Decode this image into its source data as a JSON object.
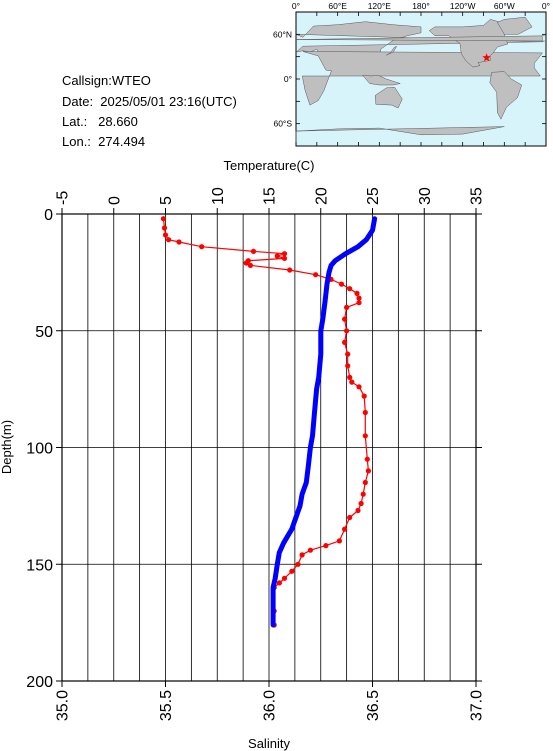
{
  "info": {
    "callsign": "Callsign:WTEO",
    "date": "Date:  2025/05/01 23:16(UTC)",
    "lat": "Lat.:   28.660",
    "lon": "Lon.:  274.494"
  },
  "map": {
    "top_labels": [
      "0°",
      "60°E",
      "120°E",
      "180°",
      "120°W",
      "60°W",
      "0°"
    ],
    "left_labels": [
      "60°N",
      "0°",
      "60°S"
    ],
    "ocean_color": "#d8f4fb",
    "land_color": "#bfbfbf",
    "marker_color": "#ff0000",
    "marker": {
      "lat": 28.66,
      "lon": 274.494
    }
  },
  "chart_data": {
    "type": "line",
    "ylabel": "Depth(m)",
    "ylim": [
      0,
      200
    ],
    "yticks": [
      0,
      50,
      100,
      150,
      200
    ],
    "top_axis": {
      "label": "Temperature(C)",
      "lim": [
        -5,
        35
      ],
      "ticks": [
        -5,
        0,
        5,
        10,
        15,
        20,
        25,
        30,
        35
      ]
    },
    "bottom_axis": {
      "label": "Salinity",
      "lim": [
        35.0,
        37.0
      ],
      "ticks": [
        "35.0",
        "35.5",
        "36.0",
        "36.5",
        "37.0"
      ]
    },
    "grid": true,
    "series": [
      {
        "axis": "temperature",
        "color": "#ff0000",
        "markers": true,
        "points": [
          [
            4.8,
            2
          ],
          [
            4.9,
            6
          ],
          [
            5.0,
            9
          ],
          [
            5.3,
            11
          ],
          [
            6.3,
            12
          ],
          [
            8.5,
            14
          ],
          [
            13.5,
            16
          ],
          [
            16.5,
            17
          ],
          [
            15.8,
            18
          ],
          [
            16.5,
            19
          ],
          [
            13.0,
            20
          ],
          [
            12.8,
            21
          ],
          [
            13.2,
            22
          ],
          [
            17.0,
            24
          ],
          [
            19.5,
            26
          ],
          [
            21.0,
            28
          ],
          [
            22.0,
            30
          ],
          [
            22.8,
            32
          ],
          [
            23.5,
            34
          ],
          [
            23.7,
            36
          ],
          [
            23.7,
            38
          ],
          [
            22.5,
            40
          ],
          [
            22.3,
            45
          ],
          [
            22.5,
            50
          ],
          [
            22.3,
            55
          ],
          [
            22.6,
            60
          ],
          [
            22.6,
            65
          ],
          [
            22.8,
            70
          ],
          [
            23.0,
            72
          ],
          [
            23.7,
            74
          ],
          [
            24.2,
            78
          ],
          [
            24.3,
            85
          ],
          [
            24.3,
            95
          ],
          [
            24.5,
            105
          ],
          [
            24.6,
            110
          ],
          [
            24.3,
            115
          ],
          [
            24.1,
            120
          ],
          [
            23.9,
            124
          ],
          [
            23.6,
            127
          ],
          [
            22.8,
            130
          ],
          [
            22.3,
            135
          ],
          [
            21.8,
            140
          ],
          [
            20.5,
            142
          ],
          [
            19.0,
            144
          ],
          [
            18.2,
            146
          ],
          [
            17.8,
            150
          ],
          [
            17.2,
            153
          ],
          [
            16.5,
            156
          ],
          [
            16.0,
            158
          ],
          [
            15.5,
            160
          ],
          [
            15.5,
            170
          ],
          [
            15.5,
            176
          ]
        ]
      },
      {
        "axis": "salinity",
        "color": "#0000ff",
        "markers": false,
        "points": [
          [
            36.51,
            2
          ],
          [
            36.5,
            7
          ],
          [
            36.47,
            11
          ],
          [
            36.43,
            14
          ],
          [
            36.37,
            17
          ],
          [
            36.32,
            20
          ],
          [
            36.3,
            22
          ],
          [
            36.29,
            25
          ],
          [
            36.28,
            30
          ],
          [
            36.27,
            38
          ],
          [
            36.26,
            45
          ],
          [
            36.25,
            50
          ],
          [
            36.25,
            60
          ],
          [
            36.24,
            70
          ],
          [
            36.23,
            75
          ],
          [
            36.22,
            85
          ],
          [
            36.21,
            95
          ],
          [
            36.2,
            100
          ],
          [
            36.19,
            108
          ],
          [
            36.18,
            115
          ],
          [
            36.16,
            120
          ],
          [
            36.15,
            125
          ],
          [
            36.13,
            130
          ],
          [
            36.11,
            135
          ],
          [
            36.09,
            138
          ],
          [
            36.07,
            141
          ],
          [
            36.05,
            145
          ],
          [
            36.04,
            150
          ],
          [
            36.03,
            156
          ],
          [
            36.02,
            160
          ],
          [
            36.02,
            176
          ]
        ]
      }
    ]
  }
}
